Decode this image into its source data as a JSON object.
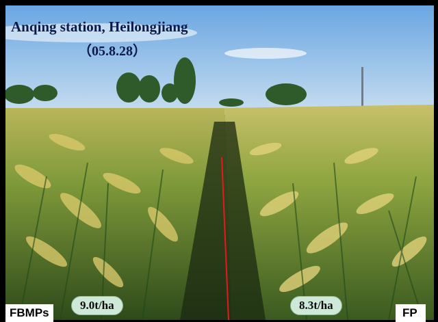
{
  "photo": {
    "title": "Anqing station, Heilongjiang",
    "date": "（05.8.28）"
  },
  "labels": {
    "left_yield": "9.0t/ha",
    "right_yield": "8.3t/ha",
    "left_treatment": "FBMPs",
    "right_treatment": "FP"
  },
  "colors": {
    "divider_line": "#e8181e",
    "sky": "#7fb3e6",
    "yield_badge": "#cfe9d8"
  }
}
